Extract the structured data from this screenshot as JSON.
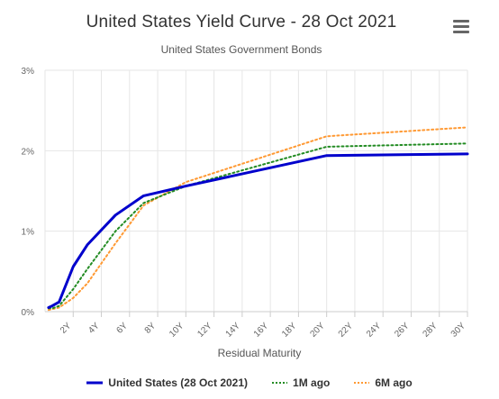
{
  "title": "United States Yield Curve - 28 Oct 2021",
  "subtitle": "United States Government Bonds",
  "menu_icon": "hamburger-menu-icon",
  "chart_data": {
    "type": "line",
    "xlabel": "Residual Maturity",
    "ylabel": "",
    "x_tick_labels": [
      "2Y",
      "4Y",
      "6Y",
      "8Y",
      "10Y",
      "12Y",
      "14Y",
      "16Y",
      "18Y",
      "20Y",
      "22Y",
      "24Y",
      "26Y",
      "28Y",
      "30Y"
    ],
    "y_tick_labels": [
      "0%",
      "1%",
      "2%",
      "3%"
    ],
    "xlim": [
      0,
      30
    ],
    "ylim": [
      0,
      3
    ],
    "grid": "vertical and horizontal",
    "legend_position": "bottom",
    "series": [
      {
        "name": "United States (28 Oct 2021)",
        "color": "#0000cc",
        "style": "solid",
        "x": [
          0.25,
          0.5,
          1,
          2,
          3,
          5,
          7,
          10,
          20,
          30
        ],
        "y": [
          0.05,
          0.07,
          0.12,
          0.56,
          0.83,
          1.2,
          1.44,
          1.56,
          1.94,
          1.96
        ]
      },
      {
        "name": "1M ago",
        "color": "#228b22",
        "style": "dotted",
        "x": [
          0.25,
          0.5,
          1,
          2,
          3,
          5,
          7,
          10,
          20,
          30
        ],
        "y": [
          0.04,
          0.04,
          0.07,
          0.28,
          0.53,
          1.0,
          1.35,
          1.56,
          2.05,
          2.09
        ]
      },
      {
        "name": "6M ago",
        "color": "#ff9933",
        "style": "dotted",
        "x": [
          0.25,
          0.5,
          1,
          2,
          3,
          5,
          7,
          10,
          20,
          30
        ],
        "y": [
          0.02,
          0.03,
          0.05,
          0.17,
          0.35,
          0.85,
          1.32,
          1.61,
          2.18,
          2.29
        ]
      }
    ]
  }
}
